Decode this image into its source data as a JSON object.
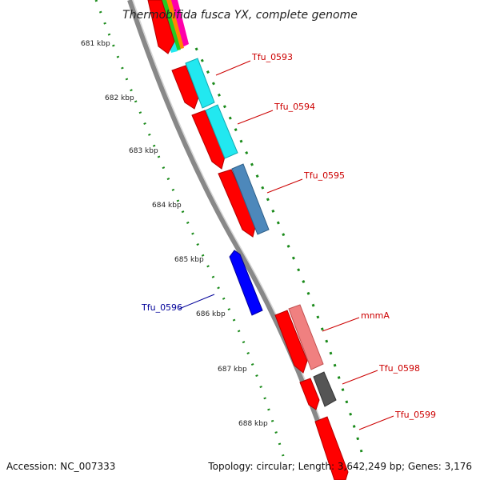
{
  "title": "Thermobifida fusca YX, complete genome",
  "footer": {
    "accession": "Accession: NC_007333",
    "topology": "Topology: circular; Length: 3,642,249 bp; Genes: 3,176"
  },
  "ruler": {
    "labels": [
      "681 kbp",
      "682 kbp",
      "683 kbp",
      "684 kbp",
      "685 kbp",
      "686 kbp",
      "687 kbp",
      "688 kbp"
    ]
  },
  "genes": [
    {
      "name": "Tfu_0593",
      "color": "#cc0000"
    },
    {
      "name": "Tfu_0594",
      "color": "#cc0000"
    },
    {
      "name": "Tfu_0595",
      "color": "#cc0000"
    },
    {
      "name": "Tfu_0596",
      "color": "#000099"
    },
    {
      "name": "mnmA",
      "color": "#cc0000"
    },
    {
      "name": "Tfu_0598",
      "color": "#cc0000"
    },
    {
      "name": "Tfu_0599",
      "color": "#cc0000"
    }
  ],
  "colors": {
    "forward_cds": "#ff0000",
    "reverse_cds": "#0000ff",
    "backbone": "#888888",
    "ruler_ticks": "#1a8a1a",
    "cyan_feature": "#22e8f0",
    "steelblue_feature": "#4d88bb",
    "pink_feature": "#f08080",
    "gray_feature": "#555555"
  }
}
